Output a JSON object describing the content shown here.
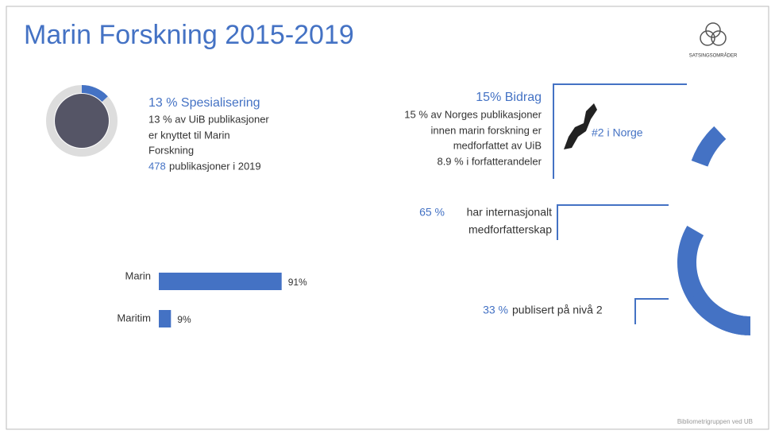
{
  "header": {
    "title": "Marin Forskning 2015-2019",
    "logo_text": "SATSINGSOMRÅDER"
  },
  "specialization": {
    "value": 13,
    "heading": "13 % Spesialisering",
    "lines": [
      "13 % av UiB publikasjoner",
      "er knyttet til Marin",
      "Forskning"
    ],
    "count": "478",
    "count_text": "publikasjoner i 2019"
  },
  "contribution": {
    "value": 15,
    "heading": "15% Bidrag",
    "lines": [
      "15 % av Norges publikasjoner",
      "innen marin forskning er",
      "medforfattet av UiB",
      "8.9 % i forfatterandeler"
    ],
    "rank": "#2 i Norge"
  },
  "international": {
    "value": 65,
    "percent": "65 %",
    "lines": [
      "har internasjonalt",
      "medforfatterskap"
    ]
  },
  "level2": {
    "value": 33,
    "percent": "33 %",
    "text": "publisert på nivå 2"
  },
  "bars": {
    "categories": [
      "Marin",
      "Maritim"
    ],
    "values": [
      91,
      9
    ],
    "value_labels": [
      "91%",
      "9%"
    ],
    "color": "#4472c4"
  },
  "footer": "Bibliometrigruppen ved UB"
}
